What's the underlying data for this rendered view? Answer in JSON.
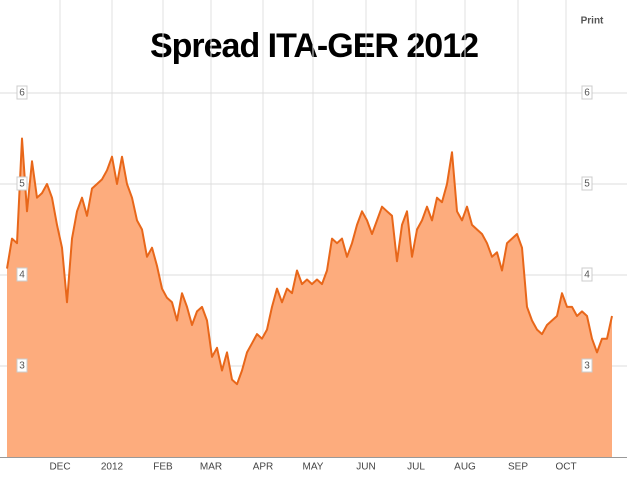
{
  "chart_data": {
    "type": "area",
    "title": "Spread ITA-GER 2012",
    "button": "Print",
    "color": "#e8671a",
    "fill": "#fdac7d",
    "values": [
      4.07,
      4.4,
      4.35,
      5.5,
      4.7,
      5.25,
      4.85,
      4.9,
      5.0,
      4.85,
      4.55,
      4.3,
      3.7,
      4.4,
      4.7,
      4.85,
      4.65,
      4.95,
      5.0,
      5.05,
      5.15,
      5.3,
      5.0,
      5.3,
      5.0,
      4.85,
      4.6,
      4.5,
      4.2,
      4.3,
      4.1,
      3.85,
      3.75,
      3.7,
      3.5,
      3.8,
      3.65,
      3.45,
      3.6,
      3.65,
      3.5,
      3.1,
      3.2,
      2.95,
      3.15,
      2.85,
      2.8,
      2.95,
      3.15,
      3.25,
      3.35,
      3.3,
      3.4,
      3.65,
      3.85,
      3.7,
      3.85,
      3.8,
      4.05,
      3.9,
      3.95,
      3.9,
      3.95,
      3.9,
      4.05,
      4.4,
      4.35,
      4.4,
      4.2,
      4.35,
      4.55,
      4.7,
      4.6,
      4.45,
      4.6,
      4.75,
      4.7,
      4.65,
      4.15,
      4.55,
      4.7,
      4.2,
      4.5,
      4.6,
      4.75,
      4.6,
      4.85,
      4.8,
      5.0,
      5.35,
      4.7,
      4.6,
      4.75,
      4.55,
      4.5,
      4.45,
      4.35,
      4.2,
      4.25,
      4.05,
      4.35,
      4.4,
      4.45,
      4.3,
      3.65,
      3.5,
      3.4,
      3.35,
      3.45,
      3.5,
      3.55,
      3.8,
      3.65,
      3.65,
      3.55,
      3.6,
      3.55,
      3.3,
      3.15,
      3.3,
      3.3,
      3.55
    ],
    "xlim": [
      0,
      121
    ],
    "xticks": [
      {
        "value": 10.6,
        "label": "DEC"
      },
      {
        "value": 21,
        "label": "2012"
      },
      {
        "value": 31.2,
        "label": "FEB"
      },
      {
        "value": 40.8,
        "label": "MAR"
      },
      {
        "value": 51.2,
        "label": "APR"
      },
      {
        "value": 61.2,
        "label": "MAY"
      },
      {
        "value": 71.8,
        "label": "JUN"
      },
      {
        "value": 81.8,
        "label": "JUL"
      },
      {
        "value": 91.6,
        "label": "AUG"
      },
      {
        "value": 102.2,
        "label": "SEP"
      },
      {
        "value": 111.8,
        "label": "OCT"
      }
    ],
    "ylim": [
      2,
      7
    ],
    "yticks": [
      3,
      4,
      5,
      6
    ],
    "grid": true
  }
}
